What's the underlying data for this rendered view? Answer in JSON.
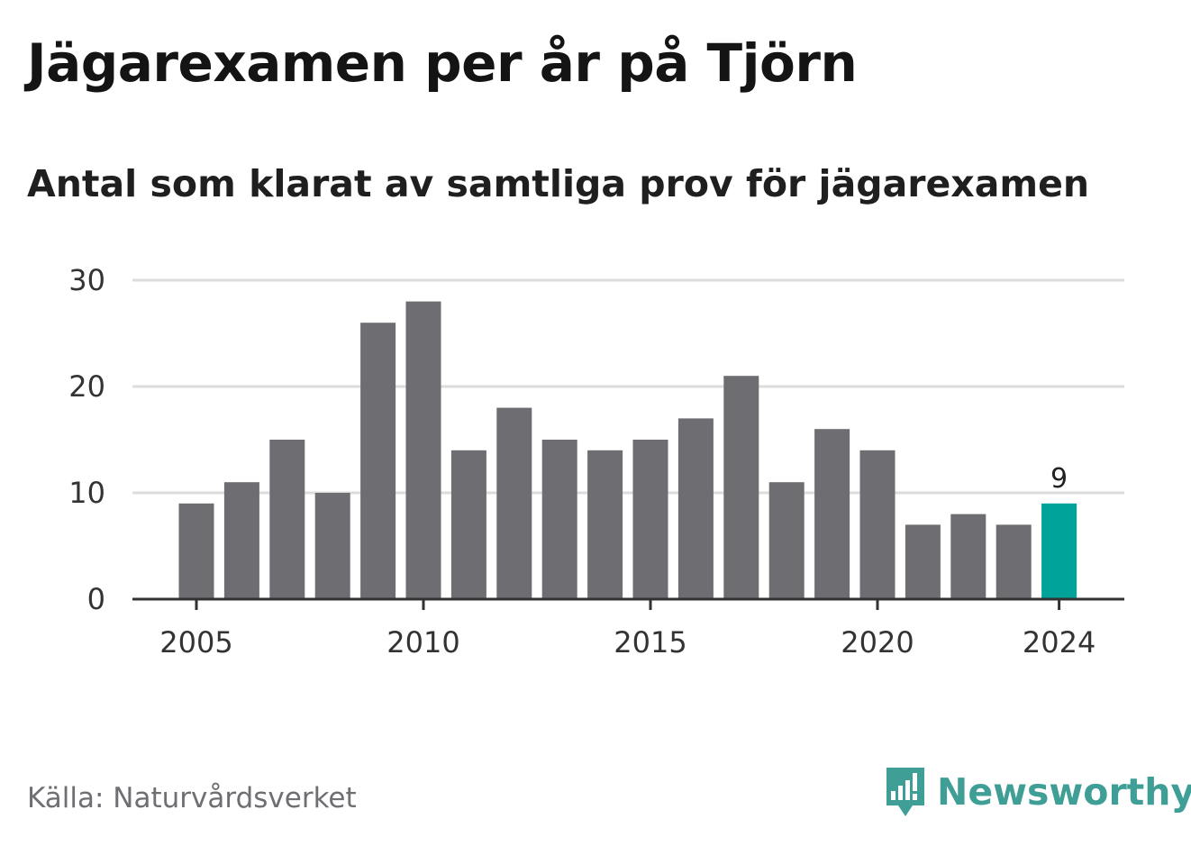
{
  "title": "Jägarexamen per år på Tjörn",
  "subtitle": "Antal som klarat av samtliga prov för jägarexamen",
  "source": "Källa: Naturvårdsverket",
  "brand": {
    "name": "Newsworthy",
    "icon": "newsworthy-logo-icon",
    "color": "#3f9e95"
  },
  "colors": {
    "bar": "#6e6d72",
    "highlight": "#00a39a",
    "grid": "#dcdcdc",
    "axis": "#333333"
  },
  "chart_data": {
    "type": "bar",
    "title": "Jägarexamen per år på Tjörn",
    "subtitle": "Antal som klarat av samtliga prov för jägarexamen",
    "xlabel": "",
    "ylabel": "",
    "categories": [
      2005,
      2006,
      2007,
      2008,
      2009,
      2010,
      2011,
      2012,
      2013,
      2014,
      2015,
      2016,
      2017,
      2018,
      2019,
      2020,
      2021,
      2022,
      2023,
      2024
    ],
    "values": [
      9,
      11,
      15,
      10,
      26,
      28,
      14,
      18,
      15,
      14,
      15,
      17,
      21,
      11,
      16,
      14,
      7,
      8,
      7,
      9
    ],
    "ylim": [
      0,
      30
    ],
    "yticks": [
      0,
      10,
      20,
      30
    ],
    "xticks": [
      2005,
      2010,
      2015,
      2020,
      2024
    ],
    "highlight": {
      "category": 2024,
      "label": "9"
    },
    "grid": true
  }
}
